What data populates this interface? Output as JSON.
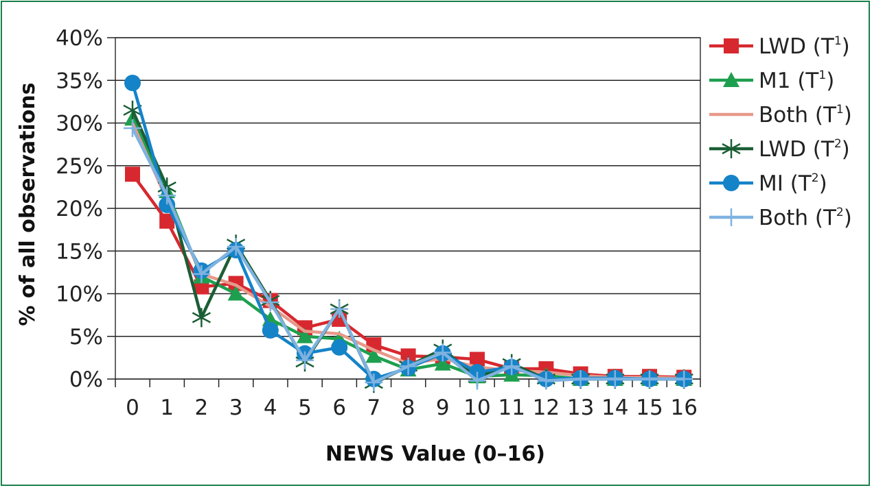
{
  "chart_data": {
    "type": "line",
    "xlabel": "NEWS Value (0–16)",
    "ylabel": "% of all observations",
    "ylim": [
      0,
      40
    ],
    "yticks": [
      "0%",
      "5%",
      "10%",
      "15%",
      "20%",
      "25%",
      "30%",
      "35%",
      "40%"
    ],
    "grid": "horizontal",
    "legend_position": "right",
    "categories": [
      "0",
      "1",
      "2",
      "3",
      "4",
      "5",
      "6",
      "7",
      "8",
      "9",
      "10",
      "11",
      "12",
      "13",
      "14",
      "15",
      "16"
    ],
    "series": [
      {
        "name": "LWD",
        "sup": "1",
        "marker": "square",
        "color": "#d7282f",
        "values": [
          24,
          18.5,
          10.8,
          11.2,
          9.2,
          6,
          7,
          4,
          2.7,
          2.6,
          2.3,
          1.2,
          1.2,
          0.6,
          0.3,
          0.3,
          0.2
        ]
      },
      {
        "name": "M1",
        "sup": "1",
        "marker": "triangle",
        "color": "#1e9f4f",
        "values": [
          30.5,
          22,
          12,
          10,
          7,
          5,
          4.7,
          2.7,
          1.1,
          1.8,
          0.3,
          0.5,
          0.4,
          0,
          0,
          0,
          0
        ]
      },
      {
        "name": "Both",
        "sup": "1",
        "marker": "none",
        "color": "#e8998a",
        "values": [
          30,
          21,
          12.3,
          11,
          8.5,
          5.6,
          5.3,
          3.4,
          1.8,
          2.4,
          1.4,
          1,
          0.8,
          0.4,
          0.2,
          0.2,
          0.1
        ]
      },
      {
        "name": "LWD",
        "sup": "2",
        "marker": "star",
        "color": "#1b5e35",
        "values": [
          31.5,
          22.5,
          7.2,
          15.8,
          9.2,
          2,
          8.2,
          -0.5,
          1.5,
          3.5,
          0.2,
          1.8,
          0,
          0,
          0,
          0,
          0
        ]
      },
      {
        "name": "MI",
        "sup": "2",
        "marker": "circle",
        "color": "#1583c8",
        "values": [
          34.7,
          20.4,
          12.7,
          15.1,
          5.7,
          3,
          3.7,
          0,
          1.3,
          3,
          0.8,
          1.4,
          0,
          0.1,
          0.1,
          0,
          0
        ]
      },
      {
        "name": "Both",
        "sup": "2",
        "marker": "plus",
        "color": "#7fb2e0",
        "values": [
          29.4,
          21.5,
          12.3,
          15.5,
          9,
          2.2,
          8.2,
          -0.4,
          1.5,
          3.1,
          -0.2,
          1.5,
          -0.2,
          0,
          0,
          0,
          0
        ]
      }
    ]
  }
}
